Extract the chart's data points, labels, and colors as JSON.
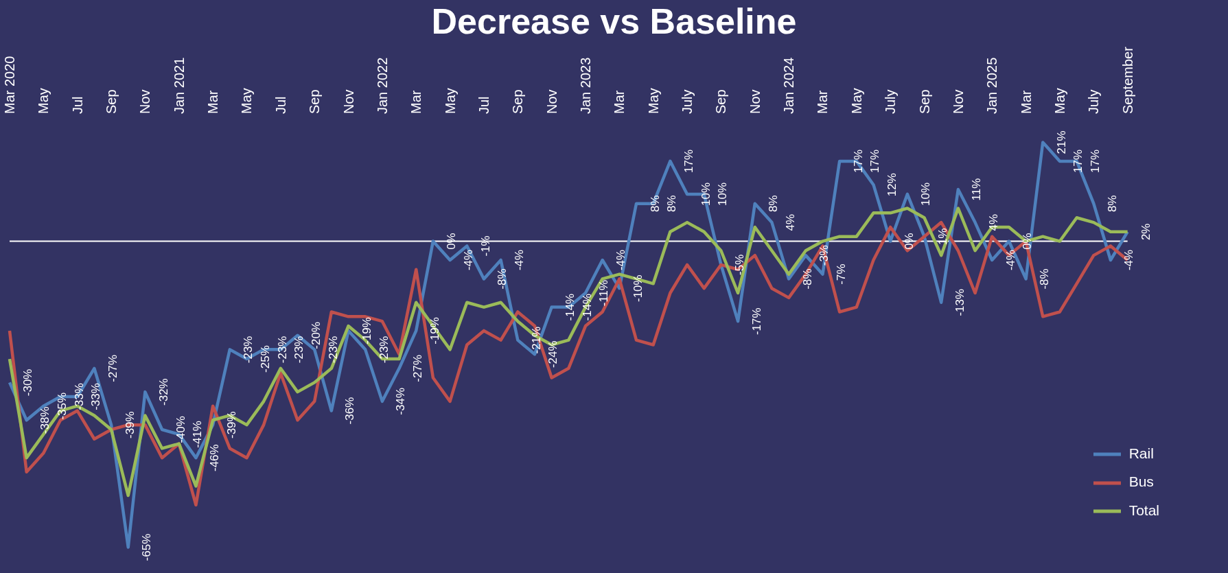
{
  "chart_data": {
    "type": "line",
    "title": "Decrease vs Baseline",
    "categories": [
      "Mar 2020",
      null,
      "May",
      null,
      "Jul",
      null,
      "Sep",
      null,
      "Nov",
      null,
      "Jan 2021",
      null,
      "Mar",
      null,
      "May",
      null,
      "Jul",
      null,
      "Sep",
      null,
      "Nov",
      null,
      "Jan 2022",
      null,
      "Mar",
      null,
      "May",
      null,
      "Jul",
      null,
      "Sep",
      null,
      "Nov",
      null,
      "Jan 2023",
      null,
      "Mar",
      null,
      "May",
      null,
      "July",
      null,
      "Sep",
      null,
      "Nov",
      null,
      "Jan 2024",
      null,
      "Mar",
      null,
      "May",
      null,
      "July",
      null,
      "Sep",
      null,
      "Nov",
      null,
      "Jan 2025",
      null,
      "Mar",
      null,
      "May",
      null,
      "July",
      null,
      "September"
    ],
    "series": [
      {
        "name": "Rail",
        "color": "#4f81bd",
        "values": [
          -30,
          -38,
          -35,
          -33,
          -33,
          -27,
          -39,
          -65,
          -32,
          -40,
          -41,
          -46,
          -39,
          -23,
          -25,
          -23,
          -23,
          -20,
          -23,
          -36,
          -19,
          -23,
          -34,
          -27,
          -19,
          0,
          -4,
          -1,
          -8,
          -4,
          -21,
          -24,
          -14,
          -14,
          -11,
          -4,
          -10,
          8,
          8,
          17,
          10,
          10,
          -5,
          -17,
          8,
          4,
          -8,
          -3,
          -7,
          17,
          17,
          12,
          0,
          10,
          1,
          -13,
          11,
          4,
          -4,
          0,
          -8,
          21,
          17,
          17,
          8,
          -4,
          2
        ],
        "value_labels": [
          "-30%",
          "-38%",
          "-35%",
          "-33%",
          "-33%",
          "-27%",
          "-39%",
          "-65%",
          "-32%",
          "-40%",
          "-41%",
          "-46%",
          "-39%",
          "-23%",
          "-25%",
          "-23%",
          "-23%",
          "-20%",
          "-23%",
          "-36%",
          "-19%",
          "-23%",
          "-34%",
          "-27%",
          "-19%",
          "0%",
          "-4%",
          "-1%",
          "-8%",
          "-4%",
          "-21%",
          "-24%",
          "-14%",
          "-14%",
          "-11%",
          "-4%",
          "-10%",
          "8%",
          "8%",
          "17%",
          "10%",
          "10%",
          "-5%",
          "-17%",
          "8%",
          "4%",
          "-8%",
          "-3%",
          "-7%",
          "17%",
          "17%",
          "12%",
          "0%",
          "10%",
          "1%",
          "-13%",
          "11%",
          "4%",
          "-4%",
          "0%",
          "-8%",
          "21%",
          "17%",
          "17%",
          "8%",
          "-4%",
          "2%"
        ]
      },
      {
        "name": "Bus",
        "color": "#c0504d",
        "values": [
          -19,
          -49,
          -45,
          -38,
          -36,
          -42,
          -40,
          -39,
          -39,
          -46,
          -43,
          -56,
          -35,
          -44,
          -46,
          -39,
          -28,
          -38,
          -34,
          -15,
          -16,
          -16,
          -17,
          -24,
          -6,
          -29,
          -34,
          -22,
          -19,
          -21,
          -15,
          -18,
          -29,
          -27,
          -18,
          -15,
          -8,
          -21,
          -22,
          -11,
          -5,
          -10,
          -5,
          -6,
          -3,
          -10,
          -12,
          -7,
          -1,
          -15,
          -14,
          -4,
          3,
          -2,
          1,
          4,
          -2,
          -11,
          1,
          -3,
          0,
          -16,
          -15,
          -9,
          -3,
          -1,
          -4
        ]
      },
      {
        "name": "Total",
        "color": "#9bbb59",
        "values": [
          -25,
          -46,
          -41,
          -36,
          -35,
          -37,
          -40,
          -54,
          -37,
          -44,
          -43,
          -52,
          -38,
          -37,
          -39,
          -34,
          -27,
          -32,
          -30,
          -27,
          -18,
          -21,
          -25,
          -25,
          -13,
          -18,
          -23,
          -13,
          -14,
          -13,
          -17,
          -20,
          -22,
          -21,
          -14,
          -8,
          -7,
          -8,
          -9,
          2,
          4,
          2,
          -2,
          -11,
          3,
          -2,
          -7,
          -2,
          0,
          1,
          1,
          6,
          6,
          7,
          5,
          -3,
          7,
          -2,
          3,
          3,
          0,
          1,
          0,
          5,
          4,
          2,
          2
        ]
      }
    ],
    "ref_lines": [
      {
        "axis": "y",
        "value": 0,
        "color": "#ffffff"
      }
    ],
    "legend": "bottom right",
    "grid": false
  }
}
